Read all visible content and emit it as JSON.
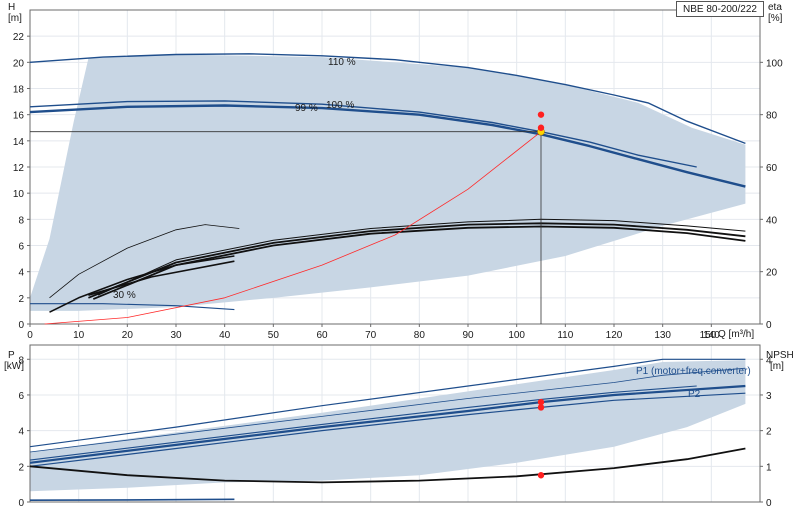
{
  "chart_title": "NBE 80-200/222",
  "colors": {
    "frame": "#6b6b6b",
    "grid": "#e4e8ee",
    "band": "#c8d6e4",
    "curve_blue": "#1f4e8c",
    "curve_black": "#111111",
    "system": "#ff2a2a",
    "duty_marker": "#ff2020",
    "duty_marker_yellow": "#ffd400"
  },
  "chart_data": [
    {
      "type": "line",
      "name": "head-efficiency",
      "xlabel": "Q [m³/h]",
      "ylabel_left": [
        "H",
        "[m]"
      ],
      "ylabel_right": [
        "eta",
        "[%]"
      ],
      "xlim": [
        0,
        150
      ],
      "ylim_left": [
        0,
        24
      ],
      "ylim_right": [
        0,
        120
      ],
      "xticks": [
        0,
        10,
        20,
        30,
        40,
        50,
        60,
        70,
        80,
        90,
        100,
        110,
        120,
        130,
        140
      ],
      "xticks_last_label": "150",
      "yticks_left": [
        0,
        2,
        4,
        6,
        8,
        10,
        12,
        14,
        16,
        18,
        20,
        22
      ],
      "yticks_right": [
        0,
        20,
        40,
        60,
        80,
        100
      ],
      "grid": true,
      "curve_labels": [
        "110 %",
        "99 %",
        "100 %",
        "30 %"
      ],
      "duty_point": {
        "q": 105,
        "h": 14.7,
        "eta": 80,
        "eta2": 75
      },
      "band_top": [
        [
          0,
          2.0
        ],
        [
          4,
          6.5
        ],
        [
          9,
          15.5
        ],
        [
          12,
          20.3
        ],
        [
          30,
          20.6
        ],
        [
          60,
          20.4
        ],
        [
          90,
          19.6
        ],
        [
          110,
          18.3
        ],
        [
          125,
          16.9
        ],
        [
          136,
          15.0
        ],
        [
          147,
          13.7
        ],
        [
          147,
          9.2
        ],
        [
          130,
          7.5
        ],
        [
          110,
          5.2
        ],
        [
          90,
          3.7
        ],
        [
          70,
          2.8
        ],
        [
          50,
          2.0
        ],
        [
          30,
          1.3
        ],
        [
          10,
          1.0
        ],
        [
          0,
          1.0
        ]
      ],
      "series": [
        {
          "name": "110 %",
          "color": "blue",
          "width": 1.4,
          "points": [
            [
              0,
              20.0
            ],
            [
              15,
              20.4
            ],
            [
              30,
              20.6
            ],
            [
              45,
              20.65
            ],
            [
              60,
              20.5
            ],
            [
              75,
              20.2
            ],
            [
              90,
              19.6
            ],
            [
              100,
              19.0
            ],
            [
              110,
              18.3
            ],
            [
              120,
              17.5
            ],
            [
              127,
              16.9
            ],
            [
              135,
              15.5
            ],
            [
              147,
              13.8
            ]
          ]
        },
        {
          "name": "100 %",
          "color": "blue",
          "width": 1.4,
          "points": [
            [
              0,
              16.6
            ],
            [
              20,
              17.0
            ],
            [
              40,
              17.05
            ],
            [
              60,
              16.8
            ],
            [
              80,
              16.2
            ],
            [
              95,
              15.4
            ],
            [
              105,
              14.7
            ],
            [
              115,
              13.9
            ],
            [
              125,
              12.9
            ],
            [
              137,
              12.0
            ]
          ]
        },
        {
          "name": "99 %",
          "color": "blue",
          "width": 2.4,
          "points": [
            [
              0,
              16.2
            ],
            [
              20,
              16.6
            ],
            [
              40,
              16.7
            ],
            [
              60,
              16.5
            ],
            [
              80,
              16.0
            ],
            [
              95,
              15.2
            ],
            [
              105,
              14.5
            ],
            [
              115,
              13.6
            ],
            [
              125,
              12.6
            ],
            [
              135,
              11.6
            ],
            [
              147,
              10.5
            ]
          ]
        },
        {
          "name": "30 %",
          "color": "blue",
          "width": 1.1,
          "points": [
            [
              0,
              1.55
            ],
            [
              15,
              1.55
            ],
            [
              30,
              1.4
            ],
            [
              42,
              1.1
            ]
          ]
        },
        {
          "name": "eta-thin-30",
          "color": "black",
          "width": 0.8,
          "points": [
            [
              4,
              2.0
            ],
            [
              10,
              3.8
            ],
            [
              20,
              5.8
            ],
            [
              30,
              7.2
            ],
            [
              36,
              7.6
            ],
            [
              43,
              7.3
            ]
          ]
        },
        {
          "name": "eta-low-a",
          "color": "black",
          "width": 1.6,
          "points": [
            [
              4,
              0.9
            ],
            [
              10,
              2.0
            ],
            [
              20,
              3.4
            ],
            [
              30,
              4.5
            ],
            [
              42,
              5.2
            ]
          ]
        },
        {
          "name": "eta-low-b",
          "color": "black",
          "width": 1.6,
          "points": [
            [
              12,
              2.2
            ],
            [
              25,
              3.6
            ],
            [
              42,
              4.8
            ]
          ]
        },
        {
          "name": "eta-main-1",
          "color": "black",
          "width": 1.8,
          "points": [
            [
              12,
              2.0
            ],
            [
              30,
              4.7
            ],
            [
              50,
              6.2
            ],
            [
              70,
              7.1
            ],
            [
              90,
              7.6
            ],
            [
              105,
              7.7
            ],
            [
              120,
              7.6
            ],
            [
              135,
              7.2
            ],
            [
              147,
              6.7
            ]
          ]
        },
        {
          "name": "eta-main-2",
          "color": "black",
          "width": 1.8,
          "points": [
            [
              13,
              1.9
            ],
            [
              30,
              4.5
            ],
            [
              50,
              6.0
            ],
            [
              70,
              6.9
            ],
            [
              90,
              7.35
            ],
            [
              105,
              7.45
            ],
            [
              120,
              7.35
            ],
            [
              135,
              6.95
            ],
            [
              147,
              6.35
            ]
          ]
        },
        {
          "name": "eta-main-3",
          "color": "black",
          "width": 1.0,
          "points": [
            [
              14,
              2.2
            ],
            [
              30,
              4.9
            ],
            [
              50,
              6.4
            ],
            [
              70,
              7.3
            ],
            [
              90,
              7.8
            ],
            [
              105,
              8.0
            ],
            [
              120,
              7.9
            ],
            [
              135,
              7.5
            ],
            [
              147,
              7.1
            ]
          ]
        },
        {
          "name": "system-curve",
          "color": "red",
          "width": 0.8,
          "points": [
            [
              3,
              0.0
            ],
            [
              20,
              0.5
            ],
            [
              40,
              2.0
            ],
            [
              60,
              4.5
            ],
            [
              75,
              6.8
            ],
            [
              90,
              10.3
            ],
            [
              105,
              14.7
            ]
          ]
        }
      ]
    },
    {
      "type": "line",
      "name": "power-npsh",
      "xlabel": "",
      "ylabel_left": [
        "P",
        "[kW]"
      ],
      "ylabel_right": [
        "NPSH",
        "[m]"
      ],
      "xlim": [
        0,
        150
      ],
      "ylim_left": [
        0,
        8.8
      ],
      "ylim_right": [
        0,
        4.4
      ],
      "yticks_left": [
        0,
        2,
        4,
        6,
        8
      ],
      "yticks_right": [
        0,
        1,
        2,
        3,
        4
      ],
      "grid": true,
      "curve_labels": [
        "P1 (motor+freq.converter)",
        "P2"
      ],
      "band_top": [
        [
          0,
          2.8
        ],
        [
          30,
          3.9
        ],
        [
          60,
          5.0
        ],
        [
          90,
          6.2
        ],
        [
          120,
          7.4
        ],
        [
          130,
          7.85
        ],
        [
          147,
          7.95
        ],
        [
          147,
          5.5
        ],
        [
          135,
          4.2
        ],
        [
          120,
          3.1
        ],
        [
          100,
          2.2
        ],
        [
          80,
          1.5
        ],
        [
          60,
          1.2
        ],
        [
          40,
          1.1
        ],
        [
          20,
          0.8
        ],
        [
          0,
          0.6
        ]
      ],
      "duty_point": {
        "q": 105,
        "p1": 5.6,
        "p2": 5.3,
        "npsh": 0.75
      },
      "series": [
        {
          "name": "P1-110",
          "color": "blue",
          "width": 1.2,
          "points": [
            [
              0,
              3.1
            ],
            [
              30,
              4.2
            ],
            [
              60,
              5.4
            ],
            [
              90,
              6.5
            ],
            [
              120,
              7.6
            ],
            [
              130,
              8.0
            ],
            [
              147,
              8.0
            ]
          ]
        },
        {
          "name": "P1-100",
          "color": "blue",
          "width": 0.8,
          "points": [
            [
              0,
              2.8
            ],
            [
              30,
              3.8
            ],
            [
              60,
              4.8
            ],
            [
              90,
              5.8
            ],
            [
              120,
              6.7
            ],
            [
              130,
              7.1
            ],
            [
              147,
              7.5
            ]
          ]
        },
        {
          "name": "P1",
          "color": "blue",
          "width": 2.2,
          "points": [
            [
              0,
              2.2
            ],
            [
              30,
              3.2
            ],
            [
              60,
              4.2
            ],
            [
              90,
              5.1
            ],
            [
              105,
              5.6
            ],
            [
              120,
              6.0
            ],
            [
              147,
              6.5
            ]
          ]
        },
        {
          "name": "P1-b",
          "color": "blue",
          "width": 1.1,
          "points": [
            [
              0,
              2.35
            ],
            [
              30,
              3.35
            ],
            [
              60,
              4.35
            ],
            [
              90,
              5.3
            ],
            [
              105,
              5.75
            ],
            [
              120,
              6.15
            ],
            [
              137,
              6.5
            ]
          ]
        },
        {
          "name": "P2",
          "color": "blue",
          "width": 1.2,
          "points": [
            [
              0,
              2.0
            ],
            [
              30,
              3.0
            ],
            [
              60,
              4.0
            ],
            [
              90,
              4.9
            ],
            [
              105,
              5.3
            ],
            [
              120,
              5.7
            ],
            [
              147,
              6.1
            ]
          ]
        },
        {
          "name": "P-30",
          "color": "blue",
          "width": 1.6,
          "points": [
            [
              0,
              0.1
            ],
            [
              20,
              0.12
            ],
            [
              42,
              0.15
            ]
          ]
        },
        {
          "name": "NPSH",
          "color": "black",
          "width": 1.8,
          "axis": "right",
          "points": [
            [
              0,
              1.0
            ],
            [
              20,
              0.75
            ],
            [
              40,
              0.6
            ],
            [
              60,
              0.55
            ],
            [
              80,
              0.6
            ],
            [
              100,
              0.72
            ],
            [
              120,
              0.95
            ],
            [
              135,
              1.2
            ],
            [
              147,
              1.5
            ]
          ]
        }
      ]
    }
  ]
}
